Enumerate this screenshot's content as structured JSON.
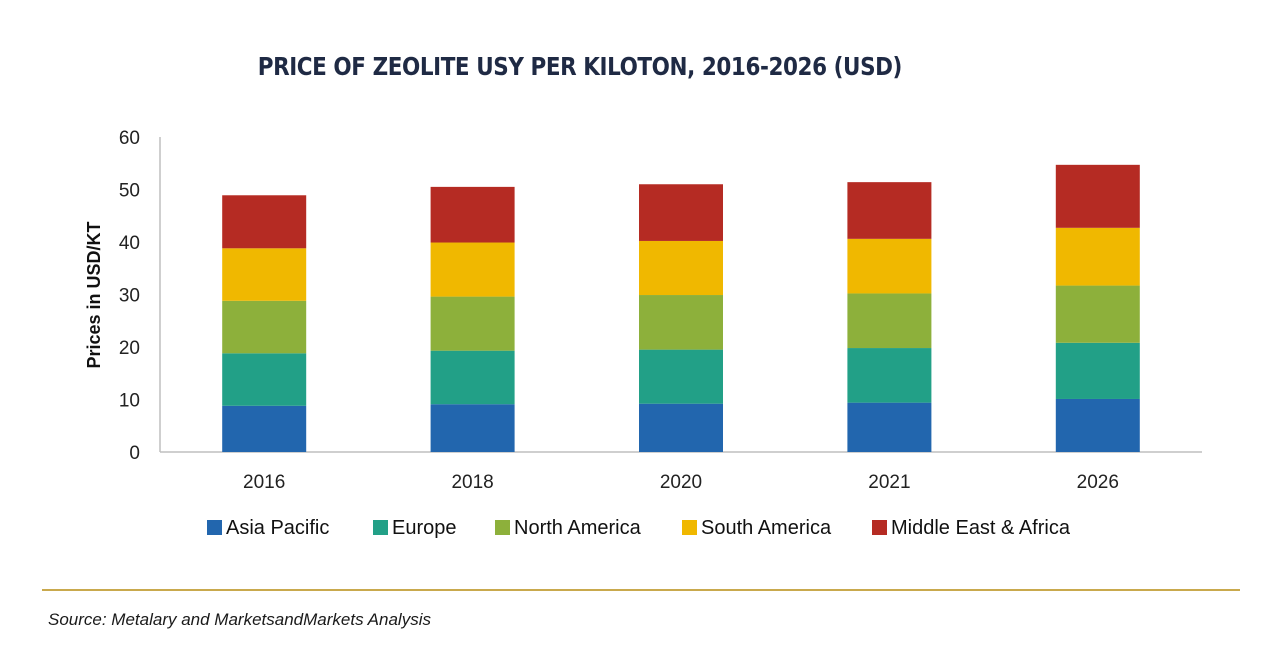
{
  "chart_data": {
    "type": "bar",
    "stacked": true,
    "title": "PRICE OF ZEOLITE USY PER KILOTON, 2016-2026 (USD)",
    "xlabel": "",
    "ylabel": "Prices in USD/KT",
    "ylim": [
      0,
      60
    ],
    "yticks": [
      0,
      10,
      20,
      30,
      40,
      50,
      60
    ],
    "grid": false,
    "legend_position": "bottom",
    "categories": [
      "2016",
      "2018",
      "2020",
      "2021",
      "2026"
    ],
    "series": [
      {
        "name": "Asia Pacific",
        "color": "#2266ae",
        "values": [
          8.8,
          9.1,
          9.2,
          9.4,
          10.1
        ]
      },
      {
        "name": "Europe",
        "color": "#22a087",
        "values": [
          10.0,
          10.2,
          10.3,
          10.4,
          10.7
        ]
      },
      {
        "name": "North America",
        "color": "#8db03b",
        "values": [
          10.0,
          10.3,
          10.4,
          10.4,
          10.9
        ]
      },
      {
        "name": "South America",
        "color": "#f0b800",
        "values": [
          10.0,
          10.3,
          10.3,
          10.4,
          11.0
        ]
      },
      {
        "name": "Middle East & Africa",
        "color": "#b52b23",
        "values": [
          10.1,
          10.6,
          10.8,
          10.8,
          12.0
        ]
      }
    ]
  },
  "source": "Source: Metalary and MarketsandMarkets Analysis"
}
